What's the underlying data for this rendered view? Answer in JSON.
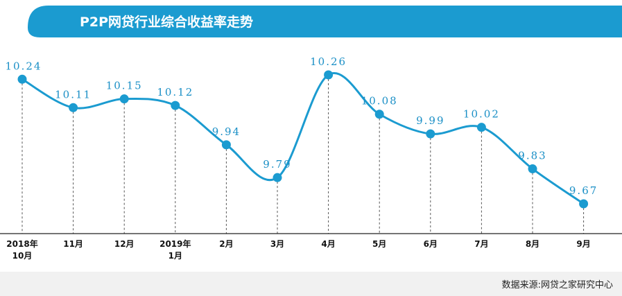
{
  "colors": {
    "accent": "#1b9bd0",
    "label": "#1a8fc6",
    "axis": "#222222",
    "guide": "#555555",
    "footer_bg": "#f1f1f1"
  },
  "chart_data": {
    "type": "line",
    "title": "P2P网贷行业综合收益率走势",
    "categories": [
      [
        "2018年",
        "10月"
      ],
      [
        "11月"
      ],
      [
        "12月"
      ],
      [
        "2019年",
        "1月"
      ],
      [
        "2月"
      ],
      [
        "3月"
      ],
      [
        "4月"
      ],
      [
        "5月"
      ],
      [
        "6月"
      ],
      [
        "7月"
      ],
      [
        "8月"
      ],
      [
        "9月"
      ]
    ],
    "values": [
      10.24,
      10.11,
      10.15,
      10.12,
      9.94,
      9.79,
      10.26,
      10.08,
      9.99,
      10.02,
      9.83,
      9.67
    ],
    "value_labels": [
      "10.24",
      "10.11",
      "10.15",
      "10.12",
      "9.94",
      "9.79",
      "10.26",
      "10.08",
      "9.99",
      "10.02",
      "9.83",
      "9.67"
    ],
    "line_style": "smooth",
    "markers": "filled-circle",
    "drop_lines": "dashed",
    "grid": false,
    "legend": "none",
    "source": "数据来源:网贷之家研究中心"
  }
}
